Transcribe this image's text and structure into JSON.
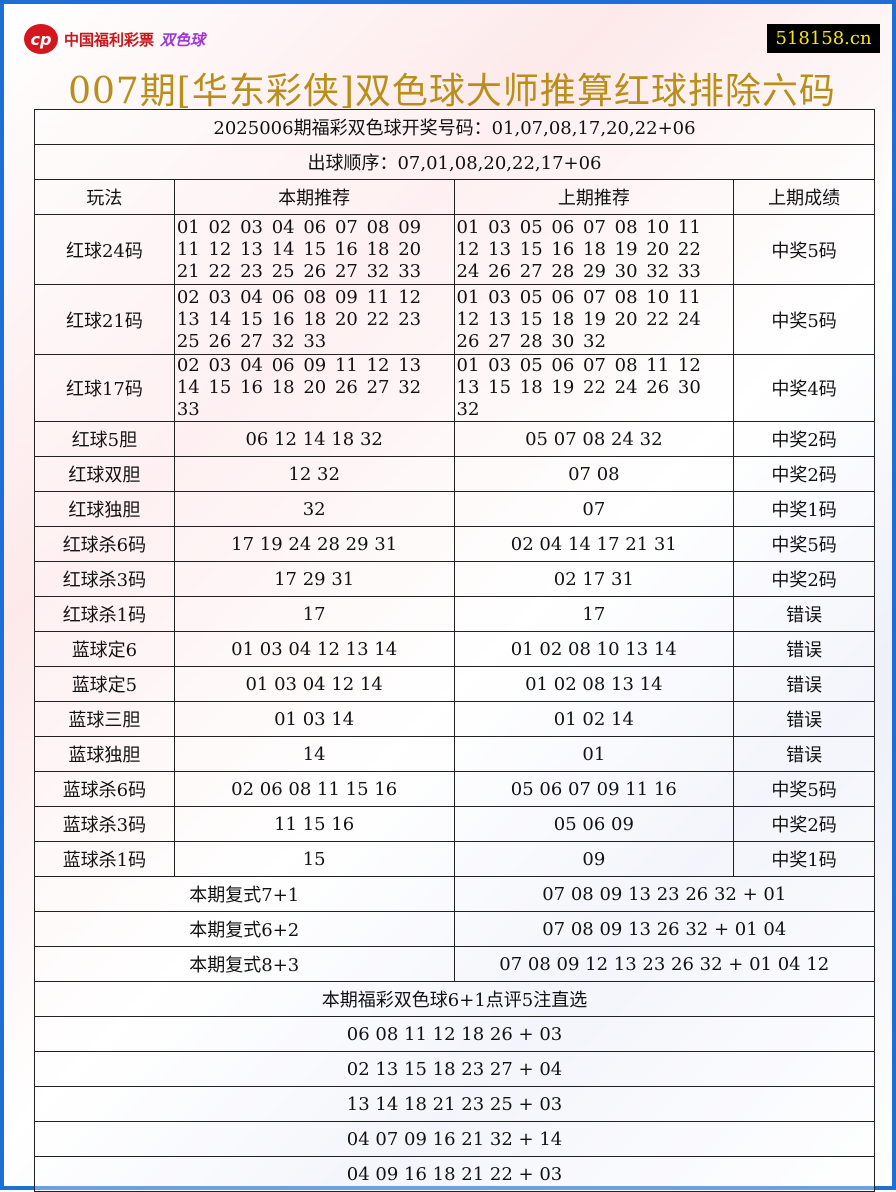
{
  "logo": {
    "text": "中国福利彩票",
    "sub": "双色球"
  },
  "site": "518158.cn",
  "title": "007期[华东彩侠]双色球大师推算红球排除六码",
  "draw": "2025006期福彩双色球开奖号码：01,07,08,17,20,22+06",
  "order": "出球顺序：07,01,08,20,22,17+06",
  "headers": [
    "玩法",
    "本期推荐",
    "上期推荐",
    "上期成绩"
  ],
  "rows": [
    [
      "红球24码",
      "01 02 03 04 06 07 08 09 11 12 13 14 15 16 18 20 21 22 23 25 26 27 32 33",
      "01 03 05 06 07 08 10 11 12 13 15 16 18 19 20 22 24 26 27 28 29 30 32 33",
      "中奖5码"
    ],
    [
      "红球21码",
      "02 03 04 06 08 09 11 12 13 14 15 16 18 20 22 23 25 26 27 32 33",
      "01 03 05 06 07 08 10 11 12 13 15 18 19 20 22 24 26 27 28 30 32",
      "中奖5码"
    ],
    [
      "红球17码",
      "02 03 04 06 09 11 12 13 14 15 16 18 20 26 27 32 33",
      "01 03 05 06 07 08 11 12 13 15 18 19 22 24 26 30 32",
      "中奖4码"
    ],
    [
      "红球5胆",
      "06 12 14 18 32",
      "05 07 08 24 32",
      "中奖2码"
    ],
    [
      "红球双胆",
      "12 32",
      "07 08",
      "中奖2码"
    ],
    [
      "红球独胆",
      "32",
      "07",
      "中奖1码"
    ],
    [
      "红球杀6码",
      "17 19 24 28 29 31",
      "02 04 14 17 21 31",
      "中奖5码"
    ],
    [
      "红球杀3码",
      "17 29 31",
      "02 17 31",
      "中奖2码"
    ],
    [
      "红球杀1码",
      "17",
      "17",
      "错误"
    ],
    [
      "蓝球定6",
      "01 03 04 12 13 14",
      "01 02 08 10 13 14",
      "错误"
    ],
    [
      "蓝球定5",
      "01 03 04 12 14",
      "01 02 08 13 14",
      "错误"
    ],
    [
      "蓝球三胆",
      "01 03 14",
      "01 02 14",
      "错误"
    ],
    [
      "蓝球独胆",
      "14",
      "01",
      "错误"
    ],
    [
      "蓝球杀6码",
      "02 06 08 11 15 16",
      "05 06 07 09 11 16",
      "中奖5码"
    ],
    [
      "蓝球杀3码",
      "11 15 16",
      "05 06 09",
      "中奖2码"
    ],
    [
      "蓝球杀1码",
      "15",
      "09",
      "中奖1码"
    ]
  ],
  "compound": [
    [
      "本期复式7+1",
      "07 08 09 13 23 26 32 + 01"
    ],
    [
      "本期复式6+2",
      "07 08 09 13 26 32 + 01 04"
    ],
    [
      "本期复式8+3",
      "07 08 09 12 13 23 26 32 + 01 04 12"
    ]
  ],
  "picks_title": "本期福彩双色球6+1点评5注直选",
  "picks": [
    "06 08 11 12 18 26 + 03",
    "02 13 15 18 23 27 + 04",
    "13 14 18 21 23 25 + 03",
    "04 07 09 16 21 32 + 14",
    "04 09 16 18 21 22 + 03"
  ]
}
